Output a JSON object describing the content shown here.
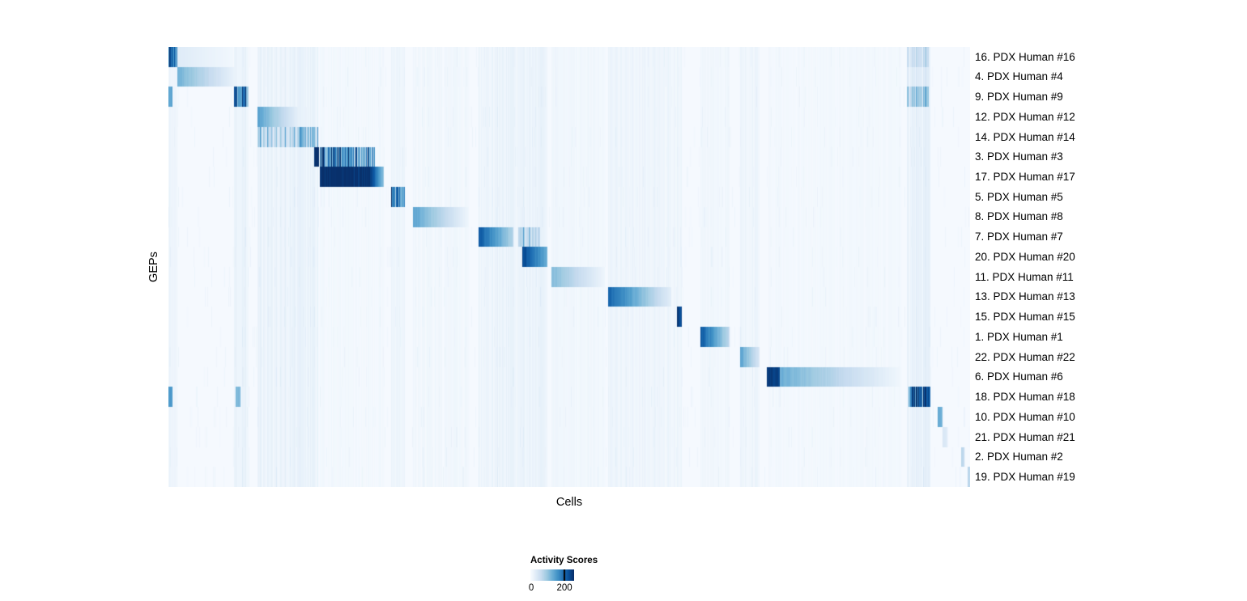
{
  "chart_data": {
    "type": "heatmap",
    "title": "",
    "xlabel": "Cells",
    "ylabel": "GEPs",
    "legend": {
      "title": "Activity Scores",
      "tick_labels": [
        "0",
        "200"
      ],
      "tick_positions": [
        0.02,
        0.78
      ]
    },
    "colormap": [
      "#f7fbff",
      "#deebf7",
      "#c6dbef",
      "#9ecae1",
      "#6baed6",
      "#4292c6",
      "#2171b5",
      "#08519c",
      "#08306b"
    ],
    "rows": [
      {
        "label": "16. PDX Human #16",
        "segments": [
          {
            "x0": 0.0,
            "x1": 0.011,
            "v0": 0.92,
            "v1": 0.78,
            "s": true
          },
          {
            "x0": 0.011,
            "x1": 0.08,
            "v0": 0.12,
            "v1": 0.03
          },
          {
            "x0": 0.921,
            "x1": 0.948,
            "v0": 0.22,
            "v1": 0.2,
            "s": true
          }
        ]
      },
      {
        "label": "4. PDX Human #4",
        "segments": [
          {
            "x0": 0.011,
            "x1": 0.085,
            "v0": 0.48,
            "v1": 0.05
          },
          {
            "x0": 0.921,
            "x1": 0.948,
            "v0": 0.12,
            "v1": 0.1,
            "s": true
          }
        ]
      },
      {
        "label": "9. PDX Human #9",
        "segments": [
          {
            "x0": 0.0,
            "x1": 0.005,
            "v0": 0.55,
            "v1": 0.55
          },
          {
            "x0": 0.081,
            "x1": 0.1,
            "v0": 0.85,
            "v1": 0.62,
            "s": true
          },
          {
            "x0": 0.921,
            "x1": 0.948,
            "v0": 0.38,
            "v1": 0.32,
            "s": true
          }
        ]
      },
      {
        "label": "12. PDX Human #12",
        "segments": [
          {
            "x0": 0.111,
            "x1": 0.163,
            "v0": 0.55,
            "v1": 0.07
          },
          {
            "x0": 0.163,
            "x1": 0.186,
            "v0": 0.06,
            "v1": 0.03
          }
        ]
      },
      {
        "label": "14. PDX Human #14",
        "segments": [
          {
            "x0": 0.111,
            "x1": 0.163,
            "v0": 0.3,
            "v1": 0.26,
            "s": true
          },
          {
            "x0": 0.163,
            "x1": 0.186,
            "v0": 0.45,
            "v1": 0.33,
            "s": true
          }
        ]
      },
      {
        "label": "3. PDX Human #3",
        "segments": [
          {
            "x0": 0.1815,
            "x1": 0.187,
            "v0": 1.0,
            "v1": 1.0
          },
          {
            "x0": 0.188,
            "x1": 0.257,
            "v0": 0.8,
            "v1": 0.62,
            "s": true
          }
        ]
      },
      {
        "label": "17. PDX Human #17",
        "segments": [
          {
            "x0": 0.188,
            "x1": 0.252,
            "v0": 1.0,
            "v1": 0.97
          },
          {
            "x0": 0.252,
            "x1": 0.268,
            "v0": 0.95,
            "v1": 0.4
          }
        ]
      },
      {
        "label": "5. PDX Human #5",
        "segments": [
          {
            "x0": 0.277,
            "x1": 0.294,
            "v0": 0.9,
            "v1": 0.58,
            "s": true
          }
        ]
      },
      {
        "label": "8. PDX Human #8",
        "segments": [
          {
            "x0": 0.305,
            "x1": 0.374,
            "v0": 0.55,
            "v1": 0.04
          }
        ]
      },
      {
        "label": "7. PDX Human #7",
        "segments": [
          {
            "x0": 0.386,
            "x1": 0.43,
            "v0": 0.85,
            "v1": 0.3
          },
          {
            "x0": 0.436,
            "x1": 0.463,
            "v0": 0.3,
            "v1": 0.24,
            "s": true
          }
        ]
      },
      {
        "label": "20. PDX Human #20",
        "segments": [
          {
            "x0": 0.441,
            "x1": 0.472,
            "v0": 0.92,
            "v1": 0.5
          }
        ]
      },
      {
        "label": "11. PDX Human #11",
        "segments": [
          {
            "x0": 0.477,
            "x1": 0.544,
            "v0": 0.45,
            "v1": 0.04
          }
        ]
      },
      {
        "label": "13. PDX Human #13",
        "segments": [
          {
            "x0": 0.548,
            "x1": 0.627,
            "v0": 0.8,
            "v1": 0.1
          }
        ]
      },
      {
        "label": "15. PDX Human #15",
        "segments": [
          {
            "x0": 0.634,
            "x1": 0.64,
            "v0": 0.95,
            "v1": 0.88
          }
        ]
      },
      {
        "label": "1. PDX Human #1",
        "segments": [
          {
            "x0": 0.663,
            "x1": 0.7,
            "v0": 0.85,
            "v1": 0.25
          }
        ]
      },
      {
        "label": "22. PDX Human #22",
        "segments": [
          {
            "x0": 0.713,
            "x1": 0.737,
            "v0": 0.55,
            "v1": 0.15
          }
        ]
      },
      {
        "label": "6. PDX Human #6",
        "segments": [
          {
            "x0": 0.746,
            "x1": 0.762,
            "v0": 0.97,
            "v1": 0.9
          },
          {
            "x0": 0.762,
            "x1": 0.914,
            "v0": 0.5,
            "v1": 0.03
          }
        ]
      },
      {
        "label": "18. PDX Human #18",
        "segments": [
          {
            "x0": 0.0,
            "x1": 0.005,
            "v0": 0.6,
            "v1": 0.6
          },
          {
            "x0": 0.083,
            "x1": 0.089,
            "v0": 0.45,
            "v1": 0.45
          },
          {
            "x0": 0.923,
            "x1": 0.95,
            "v0": 0.95,
            "v1": 0.68,
            "s": true
          }
        ]
      },
      {
        "label": "10. PDX Human #10",
        "segments": [
          {
            "x0": 0.959,
            "x1": 0.965,
            "v0": 0.55,
            "v1": 0.45
          }
        ]
      },
      {
        "label": "21. PDX Human #21",
        "segments": [
          {
            "x0": 0.965,
            "x1": 0.971,
            "v0": 0.16,
            "v1": 0.12
          }
        ]
      },
      {
        "label": "2. PDX Human #2",
        "segments": [
          {
            "x0": 0.988,
            "x1": 0.992,
            "v0": 0.3,
            "v1": 0.25
          }
        ]
      },
      {
        "label": "19. PDX Human #19",
        "segments": [
          {
            "x0": 0.996,
            "x1": 1.001,
            "v0": 0.3,
            "v1": 0.25
          }
        ]
      }
    ],
    "column_bands": [
      {
        "x0": 0.0,
        "x1": 0.011,
        "v": 0.04
      },
      {
        "x0": 0.081,
        "x1": 0.1,
        "v": 0.05
      },
      {
        "x0": 0.111,
        "x1": 0.186,
        "v": 0.05
      },
      {
        "x0": 0.188,
        "x1": 0.268,
        "v": 0.015
      },
      {
        "x0": 0.277,
        "x1": 0.294,
        "v": 0.04
      },
      {
        "x0": 0.305,
        "x1": 0.374,
        "v": 0.02
      },
      {
        "x0": 0.386,
        "x1": 0.472,
        "v": 0.045
      },
      {
        "x0": 0.477,
        "x1": 0.544,
        "v": 0.02
      },
      {
        "x0": 0.548,
        "x1": 0.64,
        "v": 0.035
      },
      {
        "x0": 0.663,
        "x1": 0.7,
        "v": 0.02
      },
      {
        "x0": 0.713,
        "x1": 0.737,
        "v": 0.03
      },
      {
        "x0": 0.746,
        "x1": 0.914,
        "v": 0.012
      },
      {
        "x0": 0.921,
        "x1": 0.95,
        "v": 0.06
      }
    ]
  }
}
